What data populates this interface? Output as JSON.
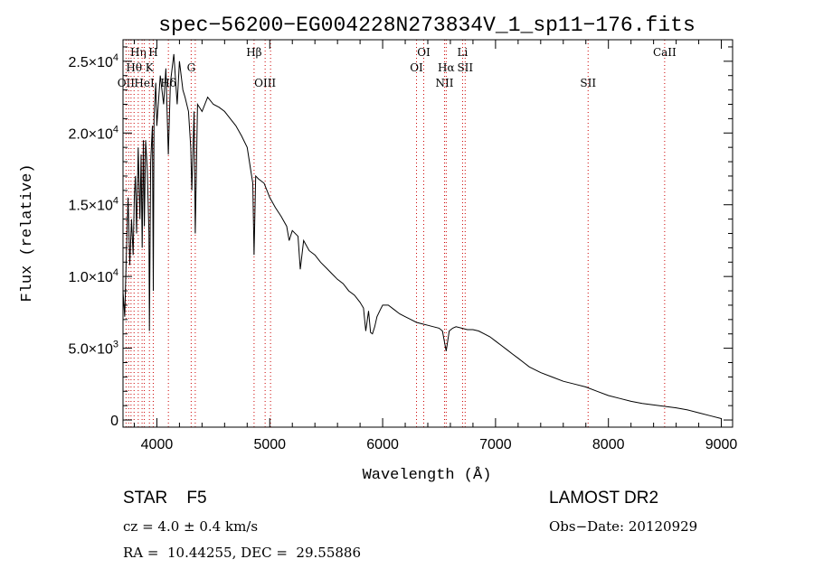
{
  "chart_data": {
    "type": "line",
    "title": "spec−56200−EG004228N273834V_1_sp11−176.fits",
    "xlabel": "Wavelength (Å)",
    "ylabel": "Flux (relative)",
    "xlim": [
      3700,
      9100
    ],
    "ylim": [
      -500,
      26500
    ],
    "grid": false,
    "x_ticks": [
      {
        "value": 4000,
        "label": "4000"
      },
      {
        "value": 5000,
        "label": "5000"
      },
      {
        "value": 6000,
        "label": "6000"
      },
      {
        "value": 7000,
        "label": "7000"
      },
      {
        "value": 8000,
        "label": "8000"
      },
      {
        "value": 9000,
        "label": "9000"
      }
    ],
    "y_ticks": [
      {
        "value": 0,
        "mant": "0",
        "exp": ""
      },
      {
        "value": 5000,
        "mant": "5.0×10",
        "exp": "3"
      },
      {
        "value": 10000,
        "mant": "1.0×10",
        "exp": "4"
      },
      {
        "value": 15000,
        "mant": "1.5×10",
        "exp": "4"
      },
      {
        "value": 20000,
        "mant": "2.0×10",
        "exp": "4"
      },
      {
        "value": 25000,
        "mant": "2.5×10",
        "exp": "4"
      }
    ],
    "spectrum": {
      "x": [
        3700,
        3715,
        3730,
        3745,
        3760,
        3775,
        3790,
        3800,
        3810,
        3820,
        3835,
        3850,
        3860,
        3870,
        3880,
        3889,
        3900,
        3915,
        3930,
        3934,
        3945,
        3960,
        3968,
        3975,
        3990,
        4000,
        4030,
        4060,
        4080,
        4101,
        4120,
        4150,
        4180,
        4200,
        4230,
        4250,
        4280,
        4300,
        4310,
        4330,
        4340,
        4360,
        4400,
        4450,
        4500,
        4550,
        4600,
        4650,
        4700,
        4750,
        4800,
        4830,
        4850,
        4861,
        4875,
        4900,
        4950,
        5000,
        5050,
        5100,
        5150,
        5172,
        5200,
        5250,
        5270,
        5300,
        5350,
        5400,
        5450,
        5500,
        5550,
        5600,
        5650,
        5700,
        5750,
        5800,
        5830,
        5850,
        5875,
        5893,
        5910,
        5930,
        5950,
        5980,
        6000,
        6050,
        6100,
        6150,
        6200,
        6250,
        6300,
        6350,
        6400,
        6450,
        6500,
        6530,
        6563,
        6590,
        6620,
        6650,
        6700,
        6750,
        6800,
        6850,
        6900,
        6950,
        7000,
        7050,
        7100,
        7150,
        7200,
        7250,
        7300,
        7400,
        7500,
        7600,
        7700,
        7800,
        7900,
        8000,
        8100,
        8200,
        8300,
        8400,
        8500,
        8600,
        8700,
        8800,
        8900,
        9000
      ],
      "y": [
        9000,
        7200,
        11500,
        15500,
        10800,
        14000,
        11500,
        15500,
        17000,
        13000,
        19000,
        14000,
        18500,
        12000,
        19500,
        13500,
        19500,
        17500,
        13000,
        6200,
        18000,
        20500,
        9000,
        21000,
        23500,
        20500,
        24000,
        22000,
        24500,
        18500,
        23500,
        25500,
        22000,
        25000,
        23000,
        22500,
        21500,
        19000,
        16000,
        21500,
        13000,
        22000,
        21500,
        22500,
        22000,
        21800,
        21500,
        21000,
        20500,
        19800,
        19000,
        17500,
        16500,
        11500,
        17000,
        16800,
        16500,
        15500,
        14800,
        14200,
        13500,
        12500,
        13200,
        12800,
        10500,
        12500,
        11800,
        11500,
        11000,
        10600,
        10200,
        9800,
        9500,
        9000,
        8700,
        8200,
        7800,
        6200,
        7600,
        6100,
        6000,
        6500,
        7200,
        7700,
        8000,
        8000,
        7700,
        7400,
        7200,
        7000,
        6800,
        6700,
        6600,
        6500,
        6400,
        6200,
        4800,
        6200,
        6400,
        6500,
        6400,
        6300,
        6300,
        6200,
        6000,
        5800,
        5500,
        5200,
        4900,
        4600,
        4300,
        4000,
        3700,
        3300,
        3000,
        2700,
        2500,
        2300,
        2000,
        1700,
        1500,
        1300,
        1150,
        1050,
        950,
        850,
        700,
        500,
        300,
        100
      ]
    },
    "line_markers": [
      {
        "wavelength": 3727,
        "label": "OII",
        "row": 3
      },
      {
        "wavelength": 3750,
        "label": "",
        "row": 0
      },
      {
        "wavelength": 3771,
        "label": "",
        "row": 0
      },
      {
        "wavelength": 3798,
        "label": "Hθ",
        "row": 2
      },
      {
        "wavelength": 3835,
        "label": "Hη",
        "row": 1
      },
      {
        "wavelength": 3869,
        "label": "",
        "row": 0
      },
      {
        "wavelength": 3889,
        "label": "HeI",
        "row": 3
      },
      {
        "wavelength": 3934,
        "label": "K",
        "row": 2
      },
      {
        "wavelength": 3968,
        "label": "H",
        "row": 1
      },
      {
        "wavelength": 4102,
        "label": "Hδ",
        "row": 3
      },
      {
        "wavelength": 4304,
        "label": "G",
        "row": 2
      },
      {
        "wavelength": 4340,
        "label": "",
        "row": 0
      },
      {
        "wavelength": 4861,
        "label": "Hβ",
        "row": 1
      },
      {
        "wavelength": 4959,
        "label": "OIII",
        "row": 3
      },
      {
        "wavelength": 5007,
        "label": "",
        "row": 0
      },
      {
        "wavelength": 6300,
        "label": "OI",
        "row": 2
      },
      {
        "wavelength": 6364,
        "label": "OI",
        "row": 1
      },
      {
        "wavelength": 6548,
        "label": "NII",
        "row": 3
      },
      {
        "wavelength": 6563,
        "label": "Hα",
        "row": 2
      },
      {
        "wavelength": 6708,
        "label": "Li",
        "row": 1
      },
      {
        "wavelength": 6731,
        "label": "SII",
        "row": 2
      },
      {
        "wavelength": 7820,
        "label": "SII",
        "row": 3
      },
      {
        "wavelength": 8498,
        "label": "CaII",
        "row": 1
      }
    ],
    "colors": {
      "spectrum": "#000000",
      "marker": "#cc0000",
      "axes": "#000000"
    }
  },
  "info": {
    "object": "STAR    F5",
    "survey": "LAMOST DR2",
    "cz": "cz = 4.0 ± 0.4 km/s",
    "obs_date": "Obs−Date: 20120929",
    "coords": "RA =  10.44255, DEC =  29.55886"
  }
}
